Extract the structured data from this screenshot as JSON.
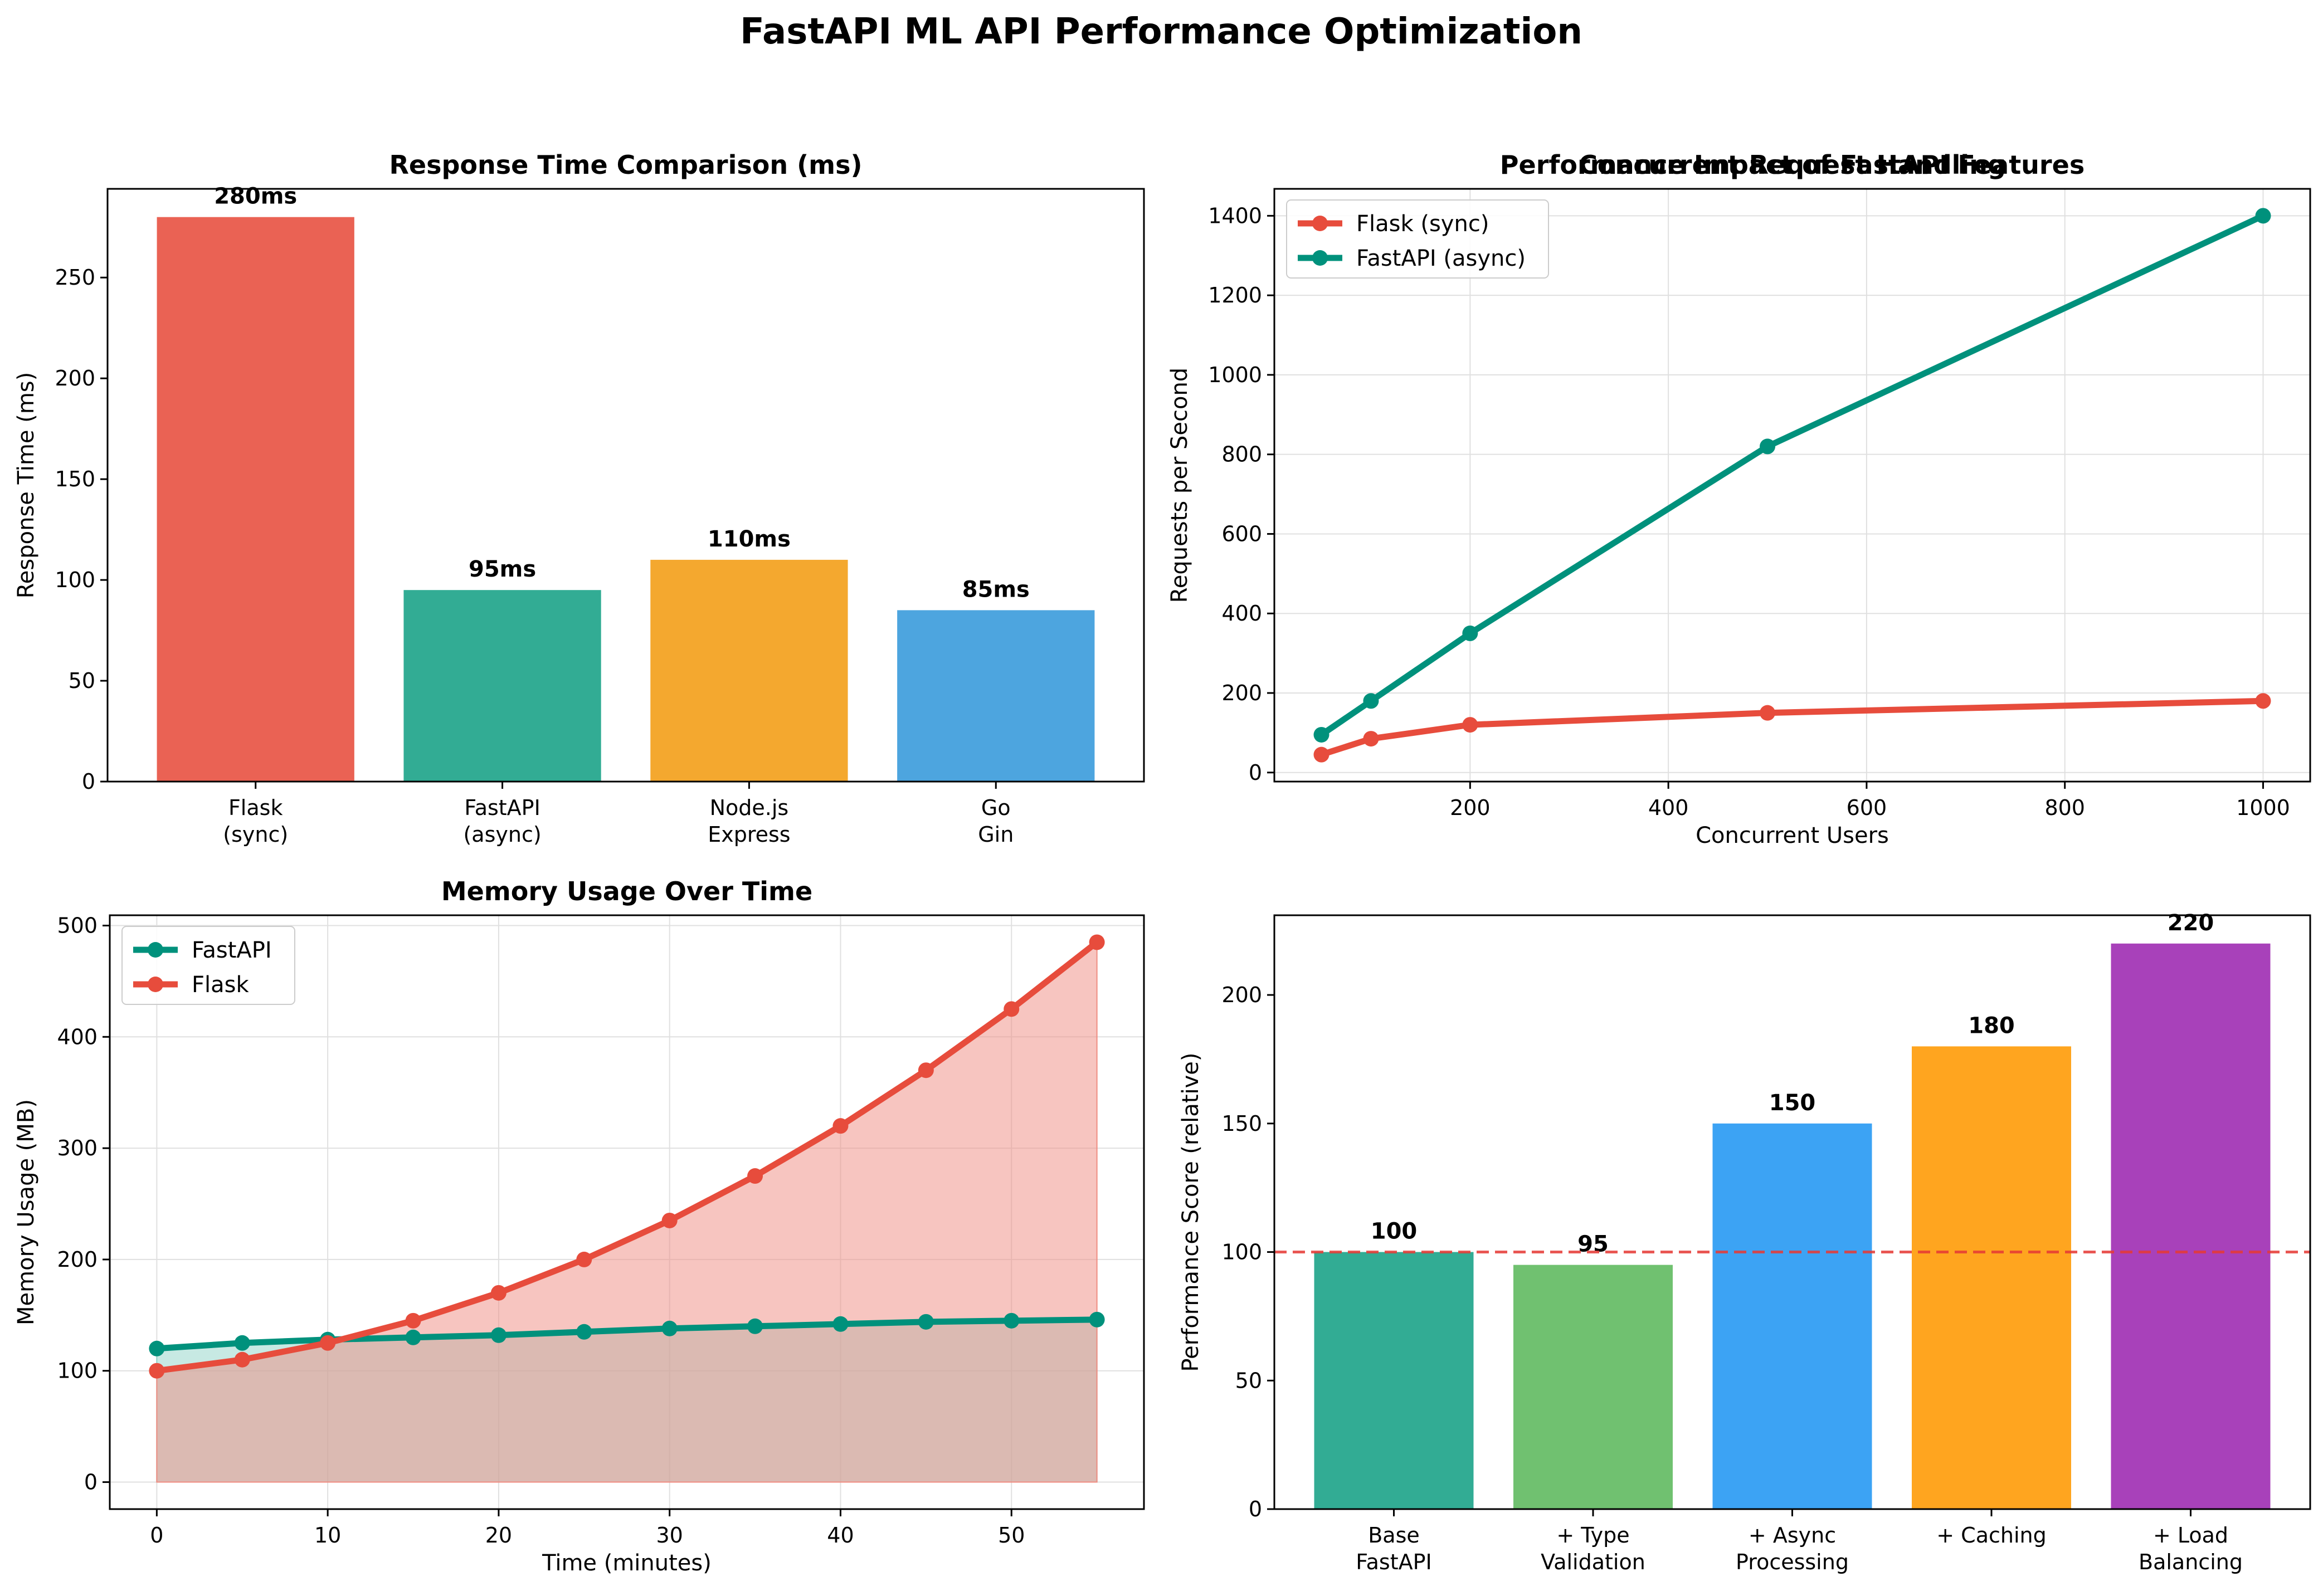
{
  "title": "FastAPI ML API Performance Optimization",
  "chart_data": [
    {
      "type": "bar",
      "title": "Response Time Comparison (ms)",
      "ylabel": "Response Time (ms)",
      "xlabel": "",
      "categories": [
        [
          "Flask",
          "(sync)"
        ],
        [
          "FastAPI",
          "(async)"
        ],
        [
          "Node.js",
          "Express"
        ],
        [
          "Go",
          "Gin"
        ]
      ],
      "values": [
        280,
        95,
        110,
        85
      ],
      "value_labels": [
        "280ms",
        "95ms",
        "110ms",
        "85ms"
      ],
      "colors": [
        "#e74c3c",
        "#16a085",
        "#f39c12",
        "#3498db"
      ],
      "ylim": [
        0,
        294
      ],
      "yticks": [
        0,
        50,
        100,
        150,
        200,
        250
      ],
      "grid": false
    },
    {
      "type": "line",
      "title": "Concurrent Request Handling",
      "xlabel": "Concurrent Users",
      "ylabel": "Requests per Second",
      "x": [
        50,
        100,
        200,
        500,
        1000
      ],
      "series": [
        {
          "name": "Flask (sync)",
          "values": [
            45,
            85,
            120,
            150,
            180
          ],
          "color": "#e74c3c"
        },
        {
          "name": "FastAPI (async)",
          "values": [
            95,
            180,
            350,
            820,
            1400
          ],
          "color": "#00917c"
        }
      ],
      "xlim": [
        2.5,
        1047.5
      ],
      "ylim": [
        -22.75,
        1467.75
      ],
      "xticks": [
        200,
        400,
        600,
        800,
        1000
      ],
      "yticks": [
        0,
        200,
        400,
        600,
        800,
        1000,
        1200,
        1400
      ],
      "legend": "top-left",
      "grid": true
    },
    {
      "type": "area",
      "title": "Memory Usage Over Time",
      "xlabel": "Time (minutes)",
      "ylabel": "Memory Usage (MB)",
      "x": [
        0,
        5,
        10,
        15,
        20,
        25,
        30,
        35,
        40,
        45,
        50,
        55
      ],
      "series": [
        {
          "name": "FastAPI",
          "values": [
            120,
            125,
            128,
            130,
            132,
            135,
            138,
            140,
            142,
            144,
            145,
            146
          ],
          "color": "#00917c",
          "fill": "#8fd3c7"
        },
        {
          "name": "Flask",
          "values": [
            100,
            110,
            125,
            145,
            170,
            200,
            235,
            275,
            320,
            370,
            425,
            485
          ],
          "color": "#e74c3c",
          "fill": "#f08c81"
        }
      ],
      "xlim": [
        -2.75,
        57.75
      ],
      "ylim": [
        -24.25,
        509.25
      ],
      "xticks": [
        0,
        10,
        20,
        30,
        40,
        50
      ],
      "yticks": [
        0,
        100,
        200,
        300,
        400,
        500
      ],
      "legend": "top-left",
      "grid": true
    },
    {
      "type": "bar",
      "title": "Performance Impact of FastAPI Features",
      "ylabel": "Performance Score (relative)",
      "xlabel": "",
      "categories": [
        [
          "Base",
          "FastAPI"
        ],
        [
          "+ Type",
          "Validation"
        ],
        [
          "+ Async",
          "Processing"
        ],
        [
          "+ Caching"
        ],
        [
          "+ Load",
          "Balancing"
        ]
      ],
      "values": [
        100,
        95,
        150,
        180,
        220
      ],
      "value_labels": [
        "100",
        "95",
        "150",
        "180",
        "220"
      ],
      "colors": [
        "#16a085",
        "#5cb85c",
        "#2196f3",
        "#ff9800",
        "#9c27b0"
      ],
      "ylim": [
        0,
        231
      ],
      "yticks": [
        0,
        50,
        100,
        150,
        200
      ],
      "reference_line": 100,
      "reference_color": "#e53935",
      "grid": false
    }
  ]
}
